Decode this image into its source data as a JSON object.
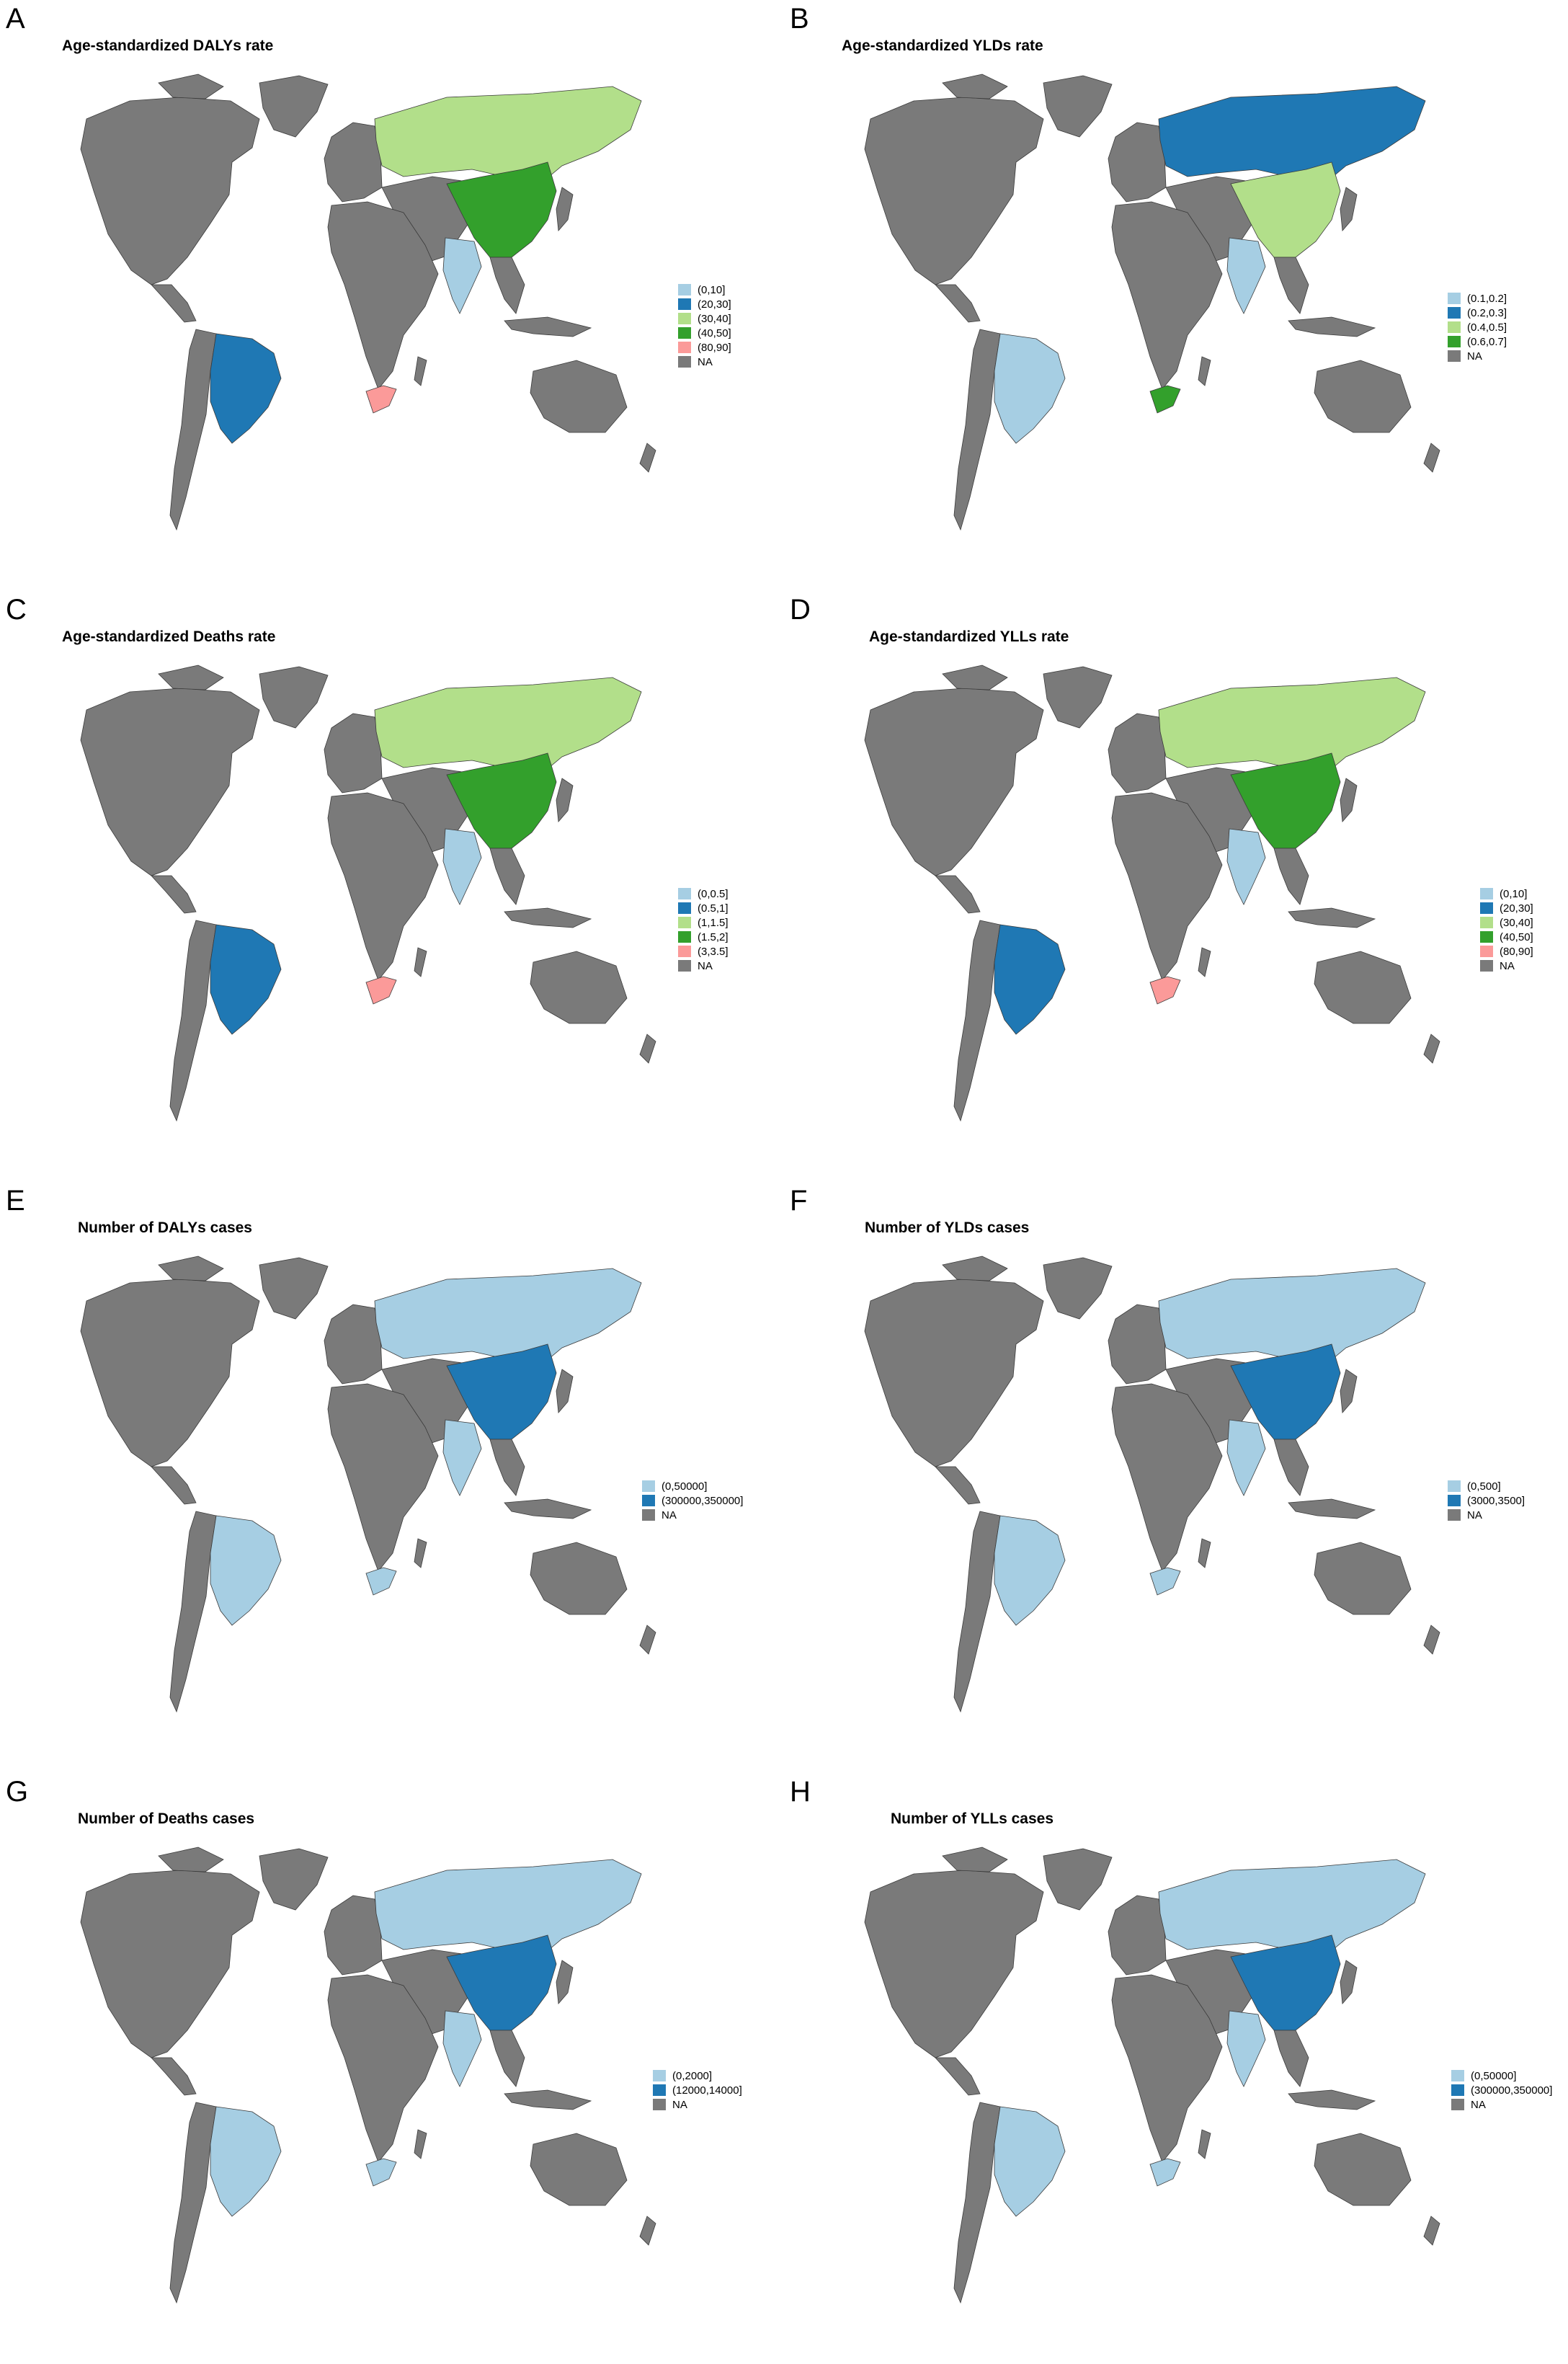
{
  "colors": {
    "light_blue": "#a6cee3",
    "dark_blue": "#1f78b4",
    "light_green": "#b2df8a",
    "dark_green": "#33a02c",
    "pink": "#fb9a99",
    "na_gray": "#7a7a7a"
  },
  "panels": [
    {
      "letter": "A",
      "title": "Age-standardized DALYs rate",
      "legend": [
        {
          "label": "(0,10]",
          "color": "#a6cee3"
        },
        {
          "label": "(20,30]",
          "color": "#1f78b4"
        },
        {
          "label": "(30,40]",
          "color": "#b2df8a"
        },
        {
          "label": "(40,50]",
          "color": "#33a02c"
        },
        {
          "label": "(80,90]",
          "color": "#fb9a99"
        },
        {
          "label": "NA",
          "color": "#7a7a7a"
        }
      ],
      "regions": {
        "russia": "#b2df8a",
        "china": "#33a02c",
        "india": "#a6cee3",
        "brazil": "#1f78b4",
        "south_africa": "#fb9a99"
      }
    },
    {
      "letter": "B",
      "title": "Age-standardized YLDs rate",
      "legend": [
        {
          "label": "(0.1,0.2]",
          "color": "#a6cee3"
        },
        {
          "label": "(0.2,0.3]",
          "color": "#1f78b4"
        },
        {
          "label": "(0.4,0.5]",
          "color": "#b2df8a"
        },
        {
          "label": "(0.6,0.7]",
          "color": "#33a02c"
        },
        {
          "label": "NA",
          "color": "#7a7a7a"
        }
      ],
      "regions": {
        "russia": "#1f78b4",
        "china": "#b2df8a",
        "india": "#a6cee3",
        "brazil": "#a6cee3",
        "south_africa": "#33a02c"
      }
    },
    {
      "letter": "C",
      "title": "Age-standardized Deaths rate",
      "legend": [
        {
          "label": "(0,0.5]",
          "color": "#a6cee3"
        },
        {
          "label": "(0.5,1]",
          "color": "#1f78b4"
        },
        {
          "label": "(1,1.5]",
          "color": "#b2df8a"
        },
        {
          "label": "(1.5,2]",
          "color": "#33a02c"
        },
        {
          "label": "(3,3.5]",
          "color": "#fb9a99"
        },
        {
          "label": "NA",
          "color": "#7a7a7a"
        }
      ],
      "regions": {
        "russia": "#b2df8a",
        "china": "#33a02c",
        "india": "#a6cee3",
        "brazil": "#1f78b4",
        "south_africa": "#fb9a99"
      }
    },
    {
      "letter": "D",
      "title": "Age-standardized YLLs rate",
      "legend": [
        {
          "label": "(0,10]",
          "color": "#a6cee3"
        },
        {
          "label": "(20,30]",
          "color": "#1f78b4"
        },
        {
          "label": "(30,40]",
          "color": "#b2df8a"
        },
        {
          "label": "(40,50]",
          "color": "#33a02c"
        },
        {
          "label": "(80,90]",
          "color": "#fb9a99"
        },
        {
          "label": "NA",
          "color": "#7a7a7a"
        }
      ],
      "regions": {
        "russia": "#b2df8a",
        "china": "#33a02c",
        "india": "#a6cee3",
        "brazil": "#1f78b4",
        "south_africa": "#fb9a99"
      }
    },
    {
      "letter": "E",
      "title": "Number of DALYs cases",
      "legend": [
        {
          "label": "(0,50000]",
          "color": "#a6cee3"
        },
        {
          "label": "(300000,350000]",
          "color": "#1f78b4"
        },
        {
          "label": "NA",
          "color": "#7a7a7a"
        }
      ],
      "regions": {
        "russia": "#a6cee3",
        "china": "#1f78b4",
        "india": "#a6cee3",
        "brazil": "#a6cee3",
        "south_africa": "#a6cee3"
      }
    },
    {
      "letter": "F",
      "title": "Number of YLDs cases",
      "legend": [
        {
          "label": "(0,500]",
          "color": "#a6cee3"
        },
        {
          "label": "(3000,3500]",
          "color": "#1f78b4"
        },
        {
          "label": "NA",
          "color": "#7a7a7a"
        }
      ],
      "regions": {
        "russia": "#a6cee3",
        "china": "#1f78b4",
        "india": "#a6cee3",
        "brazil": "#a6cee3",
        "south_africa": "#a6cee3"
      }
    },
    {
      "letter": "G",
      "title": "Number of Deaths cases",
      "legend": [
        {
          "label": "(0,2000]",
          "color": "#a6cee3"
        },
        {
          "label": "(12000,14000]",
          "color": "#1f78b4"
        },
        {
          "label": "NA",
          "color": "#7a7a7a"
        }
      ],
      "regions": {
        "russia": "#a6cee3",
        "china": "#1f78b4",
        "india": "#a6cee3",
        "brazil": "#a6cee3",
        "south_africa": "#a6cee3"
      }
    },
    {
      "letter": "H",
      "title": "Number of YLLs cases",
      "legend": [
        {
          "label": "(0,50000]",
          "color": "#a6cee3"
        },
        {
          "label": "(300000,350000]",
          "color": "#1f78b4"
        },
        {
          "label": "NA",
          "color": "#7a7a7a"
        }
      ],
      "regions": {
        "russia": "#a6cee3",
        "china": "#1f78b4",
        "india": "#a6cee3",
        "brazil": "#a6cee3",
        "south_africa": "#a6cee3"
      }
    }
  ]
}
